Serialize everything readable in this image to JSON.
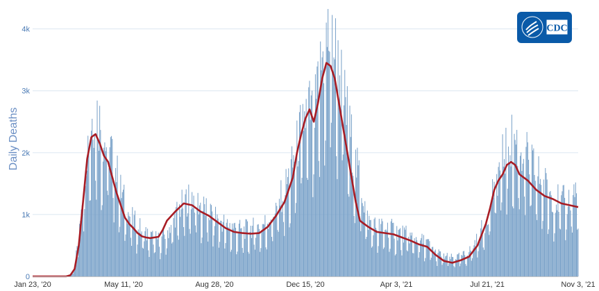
{
  "chart_data": {
    "type": "bar",
    "title": "",
    "xlabel": "",
    "ylabel": "Daily Deaths",
    "ylim": [
      0,
      4400
    ],
    "grid": true,
    "x_ticks": [
      "Jan 23, '20",
      "May 11, '20",
      "Aug 28, '20",
      "Dec 15, '20",
      "Apr 3, '21",
      "Jul 21, '21",
      "Nov 3, '21"
    ],
    "y_ticks": [
      "0",
      "1k",
      "2k",
      "3k",
      "4k"
    ],
    "y_tick_values": [
      0,
      1000,
      2000,
      3000,
      4000
    ],
    "x_range_days": [
      0,
      650
    ],
    "series": [
      {
        "kind": "bar",
        "color": "#7aa2c9",
        "description_points": [
          [
            0,
            0
          ],
          [
            40,
            0
          ],
          [
            45,
            20
          ],
          [
            50,
            150
          ],
          [
            55,
            700
          ],
          [
            60,
            1500
          ],
          [
            65,
            2100
          ],
          [
            70,
            2500
          ],
          [
            75,
            2700
          ],
          [
            80,
            2500
          ],
          [
            85,
            2200
          ],
          [
            90,
            2100
          ],
          [
            95,
            2000
          ],
          [
            100,
            1700
          ],
          [
            105,
            1400
          ],
          [
            110,
            1200
          ],
          [
            115,
            1000
          ],
          [
            120,
            900
          ],
          [
            125,
            850
          ],
          [
            130,
            750
          ],
          [
            135,
            700
          ],
          [
            140,
            650
          ],
          [
            150,
            600
          ],
          [
            160,
            700
          ],
          [
            170,
            1000
          ],
          [
            180,
            1200
          ],
          [
            190,
            1300
          ],
          [
            200,
            1150
          ],
          [
            210,
            1050
          ],
          [
            220,
            950
          ],
          [
            230,
            850
          ],
          [
            240,
            800
          ],
          [
            250,
            750
          ],
          [
            260,
            780
          ],
          [
            270,
            800
          ],
          [
            280,
            900
          ],
          [
            290,
            1100
          ],
          [
            300,
            1400
          ],
          [
            310,
            1800
          ],
          [
            320,
            2400
          ],
          [
            325,
            2600
          ],
          [
            330,
            2700
          ],
          [
            335,
            2500
          ],
          [
            340,
            3000
          ],
          [
            345,
            3500
          ],
          [
            350,
            3800
          ],
          [
            355,
            3900
          ],
          [
            360,
            3700
          ],
          [
            365,
            3300
          ],
          [
            370,
            3000
          ],
          [
            375,
            2600
          ],
          [
            380,
            2200
          ],
          [
            385,
            1800
          ],
          [
            390,
            1600
          ],
          [
            395,
            1200
          ],
          [
            400,
            900
          ],
          [
            410,
            800
          ],
          [
            420,
            800
          ],
          [
            430,
            760
          ],
          [
            440,
            700
          ],
          [
            450,
            650
          ],
          [
            460,
            600
          ],
          [
            470,
            550
          ],
          [
            480,
            400
          ],
          [
            490,
            330
          ],
          [
            500,
            300
          ],
          [
            510,
            320
          ],
          [
            520,
            400
          ],
          [
            530,
            600
          ],
          [
            540,
            900
          ],
          [
            545,
            1200
          ],
          [
            550,
            1500
          ],
          [
            555,
            1700
          ],
          [
            560,
            1900
          ],
          [
            565,
            2100
          ],
          [
            570,
            2200
          ],
          [
            575,
            2200
          ],
          [
            580,
            2100
          ],
          [
            590,
            1900
          ],
          [
            600,
            1700
          ],
          [
            610,
            1500
          ],
          [
            620,
            1300
          ],
          [
            630,
            1200
          ],
          [
            640,
            1250
          ],
          [
            645,
            1400
          ],
          [
            650,
            1300
          ]
        ]
      },
      {
        "kind": "line",
        "color": "#a81c24",
        "description_points": [
          [
            0,
            0
          ],
          [
            40,
            0
          ],
          [
            45,
            20
          ],
          [
            50,
            120
          ],
          [
            55,
            500
          ],
          [
            60,
            1200
          ],
          [
            65,
            1900
          ],
          [
            70,
            2250
          ],
          [
            75,
            2300
          ],
          [
            80,
            2150
          ],
          [
            85,
            1950
          ],
          [
            90,
            1850
          ],
          [
            95,
            1600
          ],
          [
            100,
            1350
          ],
          [
            105,
            1150
          ],
          [
            110,
            950
          ],
          [
            115,
            850
          ],
          [
            120,
            780
          ],
          [
            125,
            700
          ],
          [
            130,
            650
          ],
          [
            135,
            630
          ],
          [
            140,
            620
          ],
          [
            150,
            640
          ],
          [
            155,
            750
          ],
          [
            160,
            900
          ],
          [
            170,
            1050
          ],
          [
            180,
            1180
          ],
          [
            190,
            1150
          ],
          [
            200,
            1050
          ],
          [
            210,
            980
          ],
          [
            220,
            880
          ],
          [
            230,
            780
          ],
          [
            240,
            720
          ],
          [
            250,
            700
          ],
          [
            260,
            690
          ],
          [
            270,
            700
          ],
          [
            280,
            800
          ],
          [
            290,
            980
          ],
          [
            300,
            1200
          ],
          [
            310,
            1600
          ],
          [
            315,
            2000
          ],
          [
            320,
            2300
          ],
          [
            325,
            2550
          ],
          [
            330,
            2700
          ],
          [
            335,
            2500
          ],
          [
            340,
            2800
          ],
          [
            345,
            3200
          ],
          [
            350,
            3450
          ],
          [
            355,
            3400
          ],
          [
            360,
            3200
          ],
          [
            365,
            2800
          ],
          [
            370,
            2400
          ],
          [
            375,
            2000
          ],
          [
            380,
            1600
          ],
          [
            385,
            1200
          ],
          [
            390,
            900
          ],
          [
            395,
            850
          ],
          [
            400,
            800
          ],
          [
            410,
            720
          ],
          [
            420,
            700
          ],
          [
            430,
            680
          ],
          [
            440,
            630
          ],
          [
            450,
            580
          ],
          [
            460,
            520
          ],
          [
            470,
            480
          ],
          [
            480,
            350
          ],
          [
            490,
            250
          ],
          [
            500,
            220
          ],
          [
            510,
            260
          ],
          [
            520,
            320
          ],
          [
            530,
            500
          ],
          [
            540,
            850
          ],
          [
            545,
            1100
          ],
          [
            550,
            1400
          ],
          [
            555,
            1550
          ],
          [
            560,
            1650
          ],
          [
            565,
            1800
          ],
          [
            570,
            1850
          ],
          [
            575,
            1800
          ],
          [
            580,
            1650
          ],
          [
            590,
            1550
          ],
          [
            600,
            1400
          ],
          [
            610,
            1300
          ],
          [
            620,
            1250
          ],
          [
            630,
            1180
          ],
          [
            640,
            1150
          ],
          [
            650,
            1120
          ]
        ]
      }
    ]
  },
  "logo": {
    "text": "CDC",
    "color": "#0a5aa8",
    "icon": "hhs-eagle-icon"
  }
}
